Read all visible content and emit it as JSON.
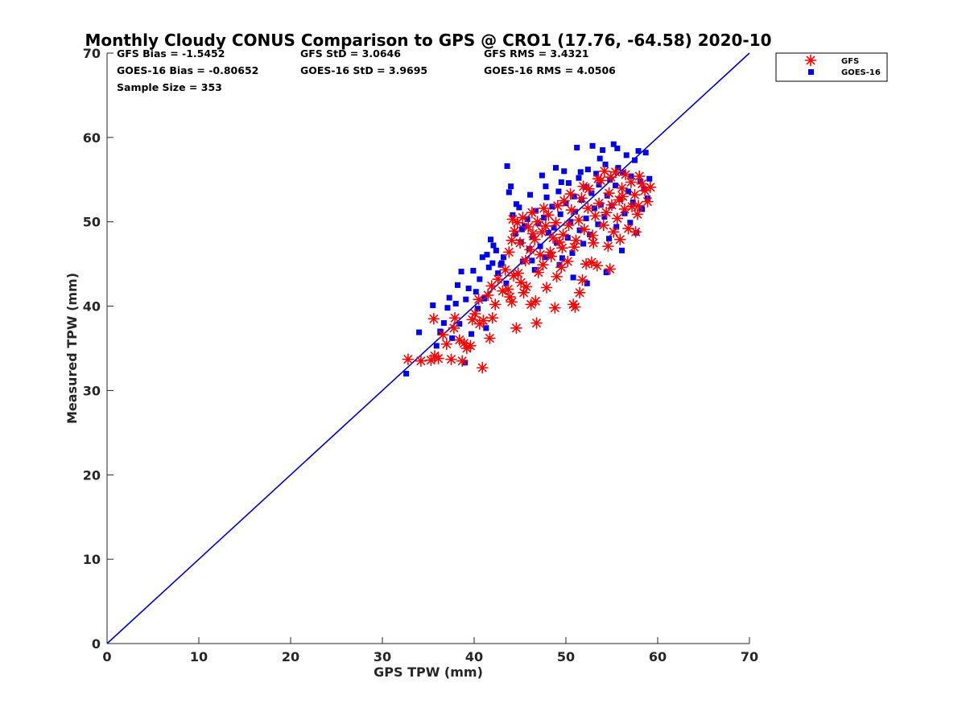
{
  "chart_data": {
    "type": "scatter",
    "title": "Monthly Cloudy CONUS Comparison to GPS @ CRO1 (17.76, -64.58) 2020-10",
    "xlabel": "GPS TPW (mm)",
    "ylabel": "Measured TPW (mm)",
    "xlim": [
      0,
      70
    ],
    "ylim": [
      0,
      70
    ],
    "xticks": [
      0,
      10,
      20,
      30,
      40,
      50,
      60,
      70
    ],
    "yticks": [
      0,
      10,
      20,
      30,
      40,
      50,
      60,
      70
    ],
    "grid": false,
    "legend_position": "outside-top-right",
    "stats": [
      "GFS Bias = -1.5452",
      "GFS StD = 3.0646",
      "GFS RMS = 3.4321",
      "GOES-16 Bias = -0.80652",
      "GOES-16 StD = 3.9695",
      "GOES-16 RMS = 4.0506",
      "Sample Size = 353"
    ],
    "reference_line": {
      "name": "1:1 line",
      "x": [
        0,
        70
      ],
      "y": [
        0,
        70
      ],
      "color": "#0000cc"
    },
    "series": [
      {
        "name": "GFS",
        "marker": "asterisk",
        "color": "#ff0000",
        "points": [
          [
            32.8,
            33.7
          ],
          [
            34.2,
            33.5
          ],
          [
            35.3,
            33.6
          ],
          [
            35.7,
            34.1
          ],
          [
            36.1,
            33.8
          ],
          [
            35.6,
            38.5
          ],
          [
            36.6,
            36.6
          ],
          [
            37.0,
            35.5
          ],
          [
            37.5,
            33.7
          ],
          [
            37.8,
            37.4
          ],
          [
            37.9,
            38.6
          ],
          [
            38.4,
            36.0
          ],
          [
            38.7,
            33.5
          ],
          [
            38.9,
            35.6
          ],
          [
            39.2,
            35.0
          ],
          [
            39.6,
            35.3
          ],
          [
            39.8,
            38.4
          ],
          [
            40.1,
            39.1
          ],
          [
            40.5,
            40.8
          ],
          [
            40.9,
            32.7
          ],
          [
            40.6,
            37.9
          ],
          [
            41.0,
            38.3
          ],
          [
            41.5,
            41.3
          ],
          [
            41.7,
            36.2
          ],
          [
            42.0,
            38.6
          ],
          [
            42.3,
            40.2
          ],
          [
            41.9,
            42.4
          ],
          [
            42.6,
            43.2
          ],
          [
            43.1,
            41.8
          ],
          [
            43.4,
            44.3
          ],
          [
            43.7,
            42.0
          ],
          [
            43.9,
            41.1
          ],
          [
            44.1,
            40.5
          ],
          [
            44.6,
            37.4
          ],
          [
            44.3,
            43.6
          ],
          [
            44.8,
            43.9
          ],
          [
            45.1,
            42.8
          ],
          [
            45.4,
            41.6
          ],
          [
            45.7,
            42.3
          ],
          [
            46.2,
            40.2
          ],
          [
            46.8,
            38.0
          ],
          [
            46.7,
            40.6
          ],
          [
            47.0,
            44.0
          ],
          [
            47.5,
            44.9
          ],
          [
            47.9,
            42.2
          ],
          [
            48.3,
            46.4
          ],
          [
            48.8,
            39.8
          ],
          [
            49.0,
            43.5
          ],
          [
            49.5,
            44.6
          ],
          [
            50.2,
            45.3
          ],
          [
            50.8,
            40.2
          ],
          [
            51.0,
            39.9
          ],
          [
            51.5,
            41.6
          ],
          [
            51.8,
            43.1
          ],
          [
            52.2,
            45.0
          ],
          [
            52.8,
            45.2
          ],
          [
            53.4,
            44.8
          ],
          [
            54.8,
            44.4
          ],
          [
            43.8,
            46.4
          ],
          [
            44.1,
            47.8
          ],
          [
            44.4,
            48.9
          ],
          [
            44.2,
            50.3
          ],
          [
            44.7,
            49.9
          ],
          [
            45.3,
            50.5
          ],
          [
            45.9,
            49.4
          ],
          [
            46.4,
            48.6
          ],
          [
            46.3,
            51.1
          ],
          [
            46.9,
            50.0
          ],
          [
            47.4,
            48.8
          ],
          [
            47.8,
            49.5
          ],
          [
            48.1,
            50.8
          ],
          [
            48.6,
            48.1
          ],
          [
            48.9,
            49.9
          ],
          [
            49.3,
            47.6
          ],
          [
            49.7,
            48.5
          ],
          [
            49.8,
            52.5
          ],
          [
            50.3,
            49.6
          ],
          [
            50.6,
            51.4
          ],
          [
            51.1,
            47.8
          ],
          [
            51.4,
            50.2
          ],
          [
            51.7,
            52.8
          ],
          [
            52.0,
            49.1
          ],
          [
            52.4,
            51.6
          ],
          [
            52.5,
            53.9
          ],
          [
            52.9,
            48.4
          ],
          [
            53.2,
            50.7
          ],
          [
            53.6,
            52.2
          ],
          [
            53.8,
            54.9
          ],
          [
            54.1,
            49.6
          ],
          [
            54.4,
            51.1
          ],
          [
            54.7,
            53.4
          ],
          [
            54.9,
            55.3
          ],
          [
            55.2,
            48.8
          ],
          [
            55.6,
            50.4
          ],
          [
            55.8,
            52.6
          ],
          [
            56.1,
            54.0
          ],
          [
            56.4,
            51.5
          ],
          [
            56.8,
            49.2
          ],
          [
            57.2,
            51.8
          ],
          [
            57.5,
            53.2
          ],
          [
            57.8,
            50.9
          ],
          [
            58.0,
            55.4
          ],
          [
            58.3,
            54.5
          ],
          [
            58.6,
            53.7
          ],
          [
            58.9,
            52.4
          ],
          [
            59.2,
            54.1
          ],
          [
            57.1,
            54.7
          ],
          [
            56.5,
            55.6
          ],
          [
            55.4,
            55.9
          ],
          [
            54.2,
            56.0
          ],
          [
            45.6,
            45.4
          ],
          [
            46.1,
            46.7
          ],
          [
            47.2,
            46.1
          ],
          [
            48.4,
            45.9
          ],
          [
            49.6,
            46.9
          ],
          [
            50.9,
            47.0
          ],
          [
            53.0,
            47.5
          ],
          [
            54.6,
            47.1
          ],
          [
            55.9,
            47.9
          ],
          [
            57.6,
            48.8
          ],
          [
            45.0,
            47.5
          ],
          [
            46.6,
            47.9
          ],
          [
            47.6,
            51.6
          ],
          [
            49.1,
            51.9
          ],
          [
            50.5,
            53.3
          ],
          [
            51.9,
            54.2
          ],
          [
            53.5,
            55.1
          ],
          [
            55.0,
            52.0
          ],
          [
            56.2,
            53.0
          ],
          [
            57.9,
            51.9
          ]
        ]
      },
      {
        "name": "GOES-16",
        "marker": "square",
        "color": "#0000ee",
        "points": [
          [
            32.6,
            32.0
          ],
          [
            34.0,
            36.9
          ],
          [
            35.5,
            40.1
          ],
          [
            35.9,
            35.3
          ],
          [
            36.3,
            37.0
          ],
          [
            36.7,
            38.0
          ],
          [
            37.1,
            39.8
          ],
          [
            37.3,
            41.0
          ],
          [
            37.6,
            36.2
          ],
          [
            38.0,
            40.3
          ],
          [
            38.2,
            42.5
          ],
          [
            38.4,
            37.9
          ],
          [
            38.6,
            44.1
          ],
          [
            39.0,
            33.3
          ],
          [
            39.1,
            40.8
          ],
          [
            39.4,
            42.1
          ],
          [
            39.7,
            36.7
          ],
          [
            39.9,
            44.2
          ],
          [
            40.2,
            41.7
          ],
          [
            40.4,
            39.7
          ],
          [
            40.6,
            43.2
          ],
          [
            40.9,
            45.8
          ],
          [
            41.1,
            40.9
          ],
          [
            41.3,
            37.4
          ],
          [
            41.6,
            44.6
          ],
          [
            41.8,
            47.9
          ],
          [
            42.0,
            45.1
          ],
          [
            42.4,
            46.6
          ],
          [
            42.6,
            43.9
          ],
          [
            42.9,
            44.9
          ],
          [
            43.2,
            45.8
          ],
          [
            43.5,
            42.7
          ],
          [
            43.6,
            56.6
          ],
          [
            43.8,
            53.5
          ],
          [
            44.0,
            54.2
          ],
          [
            44.2,
            50.8
          ],
          [
            44.5,
            48.6
          ],
          [
            44.6,
            52.1
          ],
          [
            44.9,
            51.7
          ],
          [
            45.1,
            47.6
          ],
          [
            45.3,
            45.3
          ],
          [
            45.5,
            49.5
          ],
          [
            45.8,
            50.3
          ],
          [
            46.0,
            46.8
          ],
          [
            46.1,
            53.2
          ],
          [
            46.4,
            48.3
          ],
          [
            46.6,
            44.3
          ],
          [
            46.7,
            51.3
          ],
          [
            47.0,
            49.8
          ],
          [
            47.2,
            47.1
          ],
          [
            47.4,
            55.5
          ],
          [
            47.6,
            50.5
          ],
          [
            47.9,
            52.9
          ],
          [
            48.1,
            48.7
          ],
          [
            48.3,
            46.0
          ],
          [
            48.5,
            51.8
          ],
          [
            48.7,
            49.3
          ],
          [
            48.9,
            56.4
          ],
          [
            49.0,
            47.5
          ],
          [
            49.2,
            53.6
          ],
          [
            49.4,
            50.9
          ],
          [
            49.6,
            45.7
          ],
          [
            49.8,
            56.0
          ],
          [
            50.0,
            52.2
          ],
          [
            50.2,
            48.1
          ],
          [
            50.3,
            54.6
          ],
          [
            50.5,
            50.0
          ],
          [
            50.7,
            46.3
          ],
          [
            50.9,
            53.0
          ],
          [
            51.0,
            51.2
          ],
          [
            51.2,
            58.8
          ],
          [
            51.4,
            55.2
          ],
          [
            51.5,
            49.0
          ],
          [
            51.7,
            52.6
          ],
          [
            51.9,
            47.4
          ],
          [
            52.1,
            54.1
          ],
          [
            52.2,
            50.4
          ],
          [
            52.4,
            56.2
          ],
          [
            52.6,
            48.5
          ],
          [
            52.8,
            53.4
          ],
          [
            52.9,
            59.0
          ],
          [
            53.1,
            51.6
          ],
          [
            53.3,
            55.7
          ],
          [
            53.5,
            49.7
          ],
          [
            53.6,
            54.4
          ],
          [
            53.8,
            52.0
          ],
          [
            54.0,
            58.5
          ],
          [
            54.2,
            50.6
          ],
          [
            54.3,
            56.8
          ],
          [
            54.5,
            53.1
          ],
          [
            54.7,
            48.0
          ],
          [
            54.8,
            55.0
          ],
          [
            55.0,
            51.9
          ],
          [
            55.2,
            59.2
          ],
          [
            55.4,
            54.3
          ],
          [
            55.5,
            49.4
          ],
          [
            55.7,
            56.4
          ],
          [
            55.9,
            52.7
          ],
          [
            56.1,
            46.6
          ],
          [
            56.2,
            55.8
          ],
          [
            56.4,
            51.0
          ],
          [
            56.6,
            57.9
          ],
          [
            56.8,
            53.6
          ],
          [
            57.0,
            49.9
          ],
          [
            57.1,
            55.4
          ],
          [
            57.3,
            52.3
          ],
          [
            57.5,
            57.3
          ],
          [
            57.7,
            48.7
          ],
          [
            57.9,
            58.4
          ],
          [
            58.1,
            54.8
          ],
          [
            58.3,
            51.5
          ],
          [
            58.5,
            53.9
          ],
          [
            58.7,
            58.2
          ],
          [
            58.9,
            52.8
          ],
          [
            59.1,
            55.1
          ],
          [
            55.6,
            58.7
          ],
          [
            53.7,
            57.5
          ],
          [
            51.6,
            55.9
          ],
          [
            49.5,
            54.7
          ],
          [
            47.8,
            54.2
          ],
          [
            45.2,
            49.1
          ],
          [
            46.3,
            45.4
          ],
          [
            47.7,
            45.8
          ],
          [
            49.3,
            44.9
          ],
          [
            50.8,
            43.4
          ],
          [
            52.3,
            42.7
          ],
          [
            54.4,
            44.0
          ],
          [
            43.0,
            45.1
          ],
          [
            41.4,
            46.1
          ],
          [
            42.1,
            47.2
          ]
        ]
      }
    ]
  }
}
